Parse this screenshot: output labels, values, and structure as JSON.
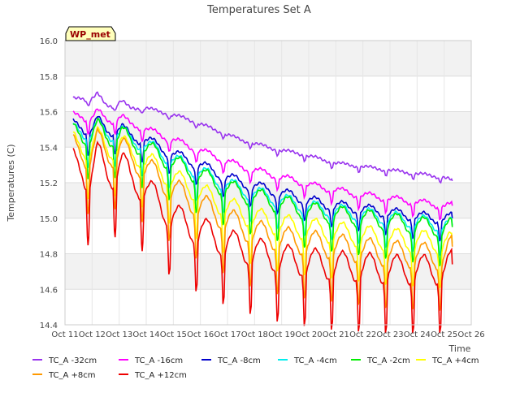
{
  "chart_data": {
    "type": "line",
    "title": "Temperatures Set A",
    "xlabel": "Time",
    "ylabel": "Temperatures (C)",
    "ylim": [
      14.4,
      16.0
    ],
    "yticks": [
      "14.4",
      "14.6",
      "14.8",
      "15.0",
      "15.2",
      "15.4",
      "15.6",
      "15.8",
      "16.0"
    ],
    "xlim": [
      11,
      26
    ],
    "xticks": [
      "Oct 11",
      "Oct 12",
      "Oct 13",
      "Oct 14",
      "Oct 15",
      "Oct 16",
      "Oct 17",
      "Oct 18",
      "Oct 19",
      "Oct 20",
      "Oct 21",
      "Oct 22",
      "Oct 23",
      "Oct 24",
      "Oct 25",
      "Oct 26"
    ],
    "annotation": "WP_met",
    "grid": true,
    "legend_position": "bottom",
    "series": [
      {
        "name": "TC_A -32cm",
        "color": "#9933ee",
        "x": [
          11.3,
          11.6,
          11.9,
          12.2,
          12.5,
          12.8,
          13.1,
          13.4,
          13.7,
          14.0,
          14.5,
          15.0,
          15.5,
          16.0,
          16.5,
          17.0,
          17.5,
          18.0,
          18.5,
          19.0,
          19.5,
          20.0,
          20.5,
          21.0,
          21.5,
          22.0,
          22.5,
          23.0,
          23.5,
          24.0,
          24.5,
          25.0,
          25.3
        ],
        "values": [
          15.67,
          15.68,
          15.66,
          15.7,
          15.64,
          15.63,
          15.66,
          15.62,
          15.62,
          15.62,
          15.6,
          15.58,
          15.56,
          15.53,
          15.5,
          15.47,
          15.44,
          15.42,
          15.4,
          15.38,
          15.37,
          15.35,
          15.33,
          15.31,
          15.3,
          15.29,
          15.28,
          15.27,
          15.26,
          15.25,
          15.24,
          15.23,
          15.21
        ]
      },
      {
        "name": "TC_A -16cm",
        "color": "#ff00ff",
        "x": [
          11.3,
          11.6,
          11.9,
          12.2,
          12.5,
          12.8,
          13.1,
          13.4,
          13.7,
          14.0,
          14.5,
          15.0,
          15.5,
          16.0,
          16.5,
          17.0,
          17.5,
          18.0,
          18.5,
          19.0,
          19.5,
          20.0,
          20.5,
          21.0,
          21.5,
          22.0,
          22.5,
          23.0,
          23.5,
          24.0,
          24.5,
          25.0,
          25.3
        ],
        "values": [
          15.58,
          15.58,
          15.55,
          15.6,
          15.56,
          15.55,
          15.57,
          15.53,
          15.52,
          15.5,
          15.47,
          15.44,
          15.41,
          15.38,
          15.35,
          15.32,
          15.29,
          15.27,
          15.25,
          15.23,
          15.21,
          15.19,
          15.17,
          15.16,
          15.14,
          15.13,
          15.12,
          15.11,
          15.1,
          15.09,
          15.08,
          15.07,
          15.07
        ]
      },
      {
        "name": "TC_A -8cm",
        "color": "#0000cc",
        "x": [
          11.3,
          11.6,
          11.9,
          12.2,
          12.5,
          12.8,
          13.1,
          13.4,
          13.7,
          14.0,
          14.5,
          15.0,
          15.5,
          16.0,
          16.5,
          17.0,
          17.5,
          18.0,
          18.5,
          19.0,
          19.5,
          20.0,
          20.5,
          21.0,
          21.5,
          22.0,
          22.5,
          23.0,
          23.5,
          24.0,
          24.5,
          25.0,
          25.3
        ],
        "values": [
          15.53,
          15.52,
          15.48,
          15.55,
          15.5,
          15.49,
          15.51,
          15.46,
          15.45,
          15.44,
          15.4,
          15.36,
          15.33,
          15.3,
          15.26,
          15.23,
          15.2,
          15.18,
          15.16,
          15.14,
          15.12,
          15.1,
          15.08,
          15.07,
          15.06,
          15.05,
          15.04,
          15.03,
          15.02,
          15.01,
          15.0,
          15.0,
          15.0
        ]
      },
      {
        "name": "TC_A -4cm",
        "color": "#00eeee",
        "x": [
          11.3,
          11.6,
          11.9,
          12.2,
          12.5,
          12.8,
          13.1,
          13.4,
          13.7,
          14.0,
          14.5,
          15.0,
          15.5,
          16.0,
          16.5,
          17.0,
          17.5,
          18.0,
          18.5,
          19.0,
          19.5,
          20.0,
          20.5,
          21.0,
          21.5,
          22.0,
          22.5,
          23.0,
          23.5,
          24.0,
          24.5,
          25.0,
          25.3
        ],
        "values": [
          15.5,
          15.5,
          15.46,
          15.52,
          15.48,
          15.47,
          15.49,
          15.44,
          15.43,
          15.41,
          15.37,
          15.33,
          15.29,
          15.26,
          15.22,
          15.19,
          15.16,
          15.14,
          15.12,
          15.1,
          15.08,
          15.06,
          15.05,
          15.04,
          15.03,
          15.02,
          15.01,
          15.0,
          14.99,
          14.98,
          14.97,
          14.96,
          14.96
        ]
      },
      {
        "name": "TC_A -2cm",
        "color": "#00ee00",
        "x": [
          11.3,
          11.6,
          11.9,
          12.2,
          12.5,
          12.8,
          13.1,
          13.4,
          13.7,
          14.0,
          14.5,
          15.0,
          15.5,
          16.0,
          16.5,
          17.0,
          17.5,
          18.0,
          18.5,
          19.0,
          19.5,
          20.0,
          20.5,
          21.0,
          21.5,
          22.0,
          22.5,
          23.0,
          23.5,
          24.0,
          24.5,
          25.0,
          25.3
        ],
        "values": [
          15.49,
          15.48,
          15.44,
          15.51,
          15.46,
          15.45,
          15.48,
          15.42,
          15.41,
          15.39,
          15.35,
          15.31,
          15.27,
          15.24,
          15.2,
          15.17,
          15.14,
          15.12,
          15.1,
          15.08,
          15.06,
          15.04,
          15.03,
          15.02,
          15.01,
          15.0,
          14.99,
          14.98,
          14.97,
          14.96,
          14.95,
          14.94,
          14.95
        ]
      },
      {
        "name": "TC_A +4cm",
        "color": "#ffff00",
        "x": [
          11.3,
          11.6,
          11.9,
          12.2,
          12.5,
          12.8,
          13.1,
          13.4,
          13.7,
          14.0,
          14.5,
          15.0,
          15.5,
          16.0,
          16.5,
          17.0,
          17.5,
          18.0,
          18.5,
          19.0,
          19.5,
          20.0,
          20.5,
          21.0,
          21.5,
          22.0,
          22.5,
          23.0,
          23.5,
          24.0,
          24.5,
          25.0,
          25.3
        ],
        "values": [
          15.43,
          15.42,
          15.37,
          15.45,
          15.4,
          15.39,
          15.42,
          15.36,
          15.35,
          15.32,
          15.27,
          15.22,
          15.18,
          15.14,
          15.1,
          15.06,
          15.03,
          15.0,
          14.98,
          14.96,
          14.95,
          14.94,
          14.93,
          14.92,
          14.91,
          14.9,
          14.89,
          14.88,
          14.88,
          14.87,
          14.87,
          14.86,
          14.86
        ]
      },
      {
        "name": "TC_A +8cm",
        "color": "#ff9900",
        "x": [
          11.3,
          11.6,
          11.9,
          12.2,
          12.5,
          12.8,
          13.1,
          13.4,
          13.7,
          14.0,
          14.5,
          15.0,
          15.5,
          16.0,
          16.5,
          17.0,
          17.5,
          18.0,
          18.5,
          19.0,
          19.5,
          20.0,
          20.5,
          21.0,
          21.5,
          22.0,
          22.5,
          23.0,
          23.5,
          24.0,
          24.5,
          25.0,
          25.3
        ],
        "values": [
          15.4,
          15.39,
          15.33,
          15.43,
          15.37,
          15.36,
          15.4,
          15.33,
          15.31,
          15.28,
          15.22,
          15.16,
          15.11,
          15.07,
          15.03,
          14.99,
          14.95,
          14.92,
          14.9,
          14.88,
          14.87,
          14.86,
          14.85,
          14.84,
          14.83,
          14.82,
          14.81,
          14.8,
          14.8,
          14.79,
          14.79,
          14.78,
          14.84
        ]
      },
      {
        "name": "TC_A +12cm",
        "color": "#ee0000",
        "x": [
          11.3,
          11.6,
          11.9,
          12.2,
          12.5,
          12.8,
          13.1,
          13.4,
          13.7,
          14.0,
          14.5,
          15.0,
          15.5,
          16.0,
          16.5,
          17.0,
          17.5,
          18.0,
          18.5,
          19.0,
          19.5,
          20.0,
          20.5,
          21.0,
          21.5,
          22.0,
          22.5,
          23.0,
          23.5,
          24.0,
          24.5,
          25.0,
          25.3
        ],
        "values": [
          15.31,
          15.3,
          15.2,
          15.35,
          15.27,
          15.25,
          15.31,
          15.22,
          15.2,
          15.16,
          15.08,
          15.01,
          14.96,
          14.93,
          14.89,
          14.86,
          14.83,
          14.81,
          14.79,
          14.77,
          14.76,
          14.75,
          14.74,
          14.73,
          14.73,
          14.72,
          14.72,
          14.71,
          14.71,
          14.71,
          14.71,
          14.71,
          14.74
        ]
      }
    ]
  }
}
